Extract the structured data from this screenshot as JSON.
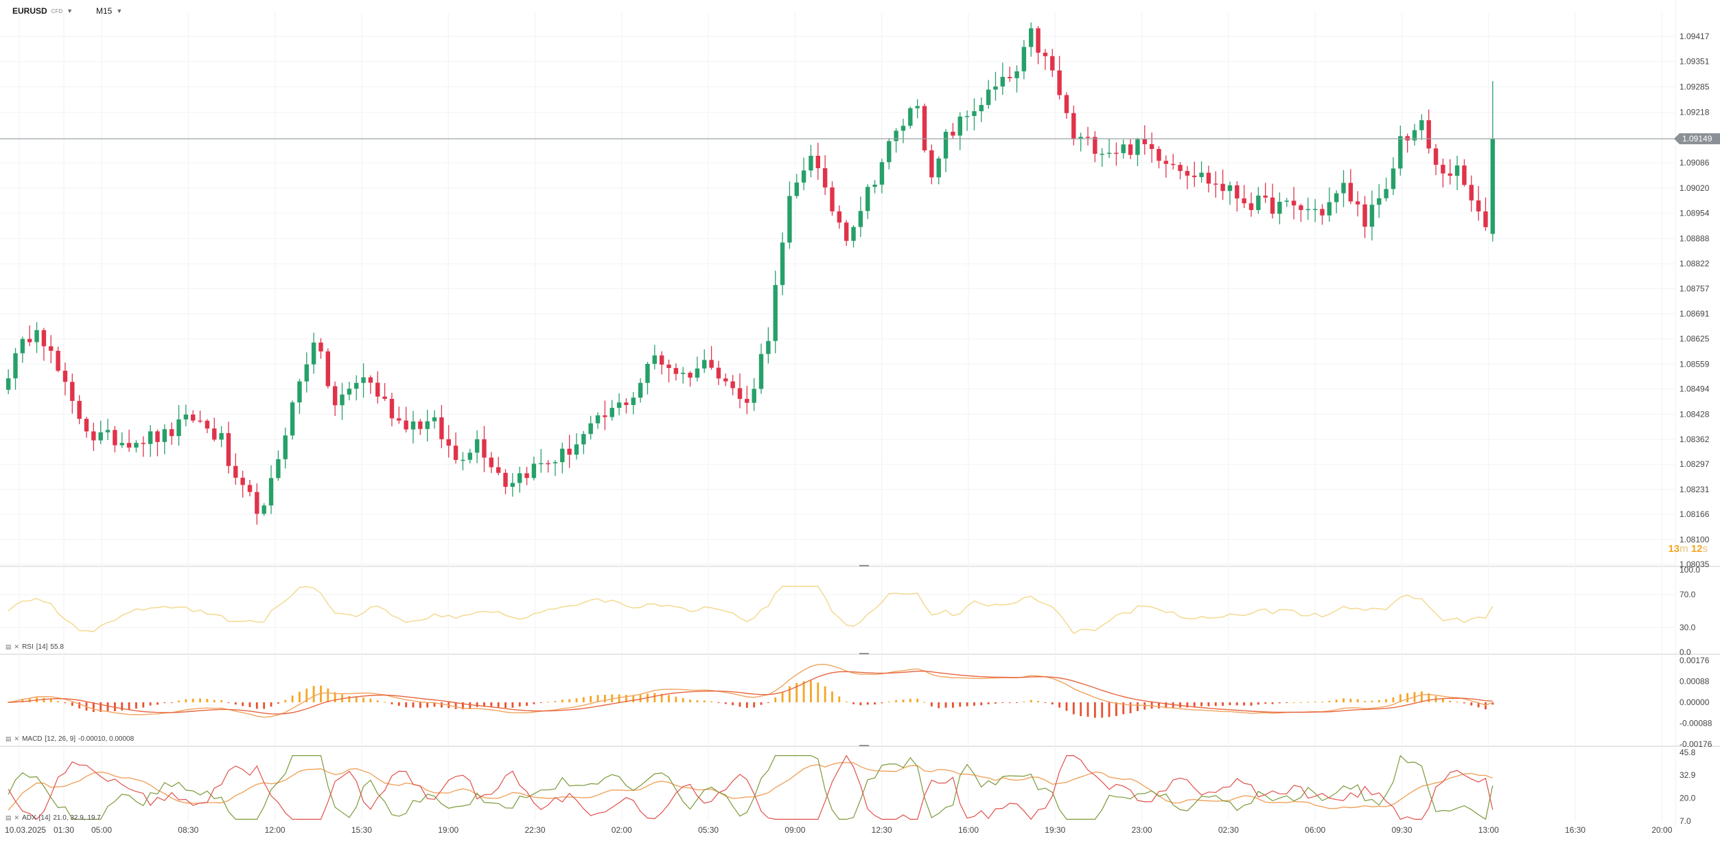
{
  "header": {
    "symbol": "EURUSD",
    "symbol_sub": "CFD",
    "timeframe": "M15"
  },
  "countdown": {
    "minutes": "13",
    "m": "m",
    "seconds": "12",
    "s": "s"
  },
  "colors": {
    "up": "#26a069",
    "down": "#e0334a",
    "rsi_line": "#f3d78a",
    "macd_line": "#f0a35e",
    "signal_line": "#e7653f",
    "hist_up": "#f5a623",
    "hist_down": "#e8502f",
    "adx_line": "#f0a35e",
    "plus_di": "#7a9a3a",
    "minus_di": "#e0504a",
    "price_line": "#9aa0a6",
    "price_label_bg": "#8a9096"
  },
  "chart_data": [
    {
      "type": "candlestick",
      "symbol": "EURUSD",
      "timeframe": "M15",
      "last_price": 1.09149,
      "ylim": [
        1.08035,
        1.09417
      ],
      "y_ticks": [
        "1.09417",
        "1.09351",
        "1.09285",
        "1.09218",
        "1.09086",
        "1.09020",
        "1.08954",
        "1.08888",
        "1.08822",
        "1.08757",
        "1.08691",
        "1.08625",
        "1.08559",
        "1.08494",
        "1.08428",
        "1.08362",
        "1.08297",
        "1.08231",
        "1.08166",
        "1.08100",
        "1.08035"
      ],
      "last_price_label": "1.09149",
      "x_ticks": [
        "10.03.2025",
        "01:30",
        "05:00",
        "08:30",
        "12:00",
        "15:30",
        "19:00",
        "22:30",
        "02:00",
        "05:30",
        "09:00",
        "12:30",
        "16:00",
        "19:30",
        "23:00",
        "02:30",
        "06:00",
        "09:30",
        "13:00",
        "16:30",
        "20:00"
      ],
      "anchors": [
        [
          0,
          1.0854
        ],
        [
          4,
          1.0867
        ],
        [
          9,
          1.0845
        ],
        [
          12,
          1.0837
        ],
        [
          16,
          1.0836
        ],
        [
          22,
          1.0837
        ],
        [
          26,
          1.0842
        ],
        [
          30,
          1.0836
        ],
        [
          32,
          1.0824
        ],
        [
          36,
          1.0817
        ],
        [
          39,
          1.0839
        ],
        [
          43,
          1.0863
        ],
        [
          46,
          1.0845
        ],
        [
          50,
          1.0853
        ],
        [
          55,
          1.0841
        ],
        [
          60,
          1.084
        ],
        [
          63,
          1.0831
        ],
        [
          66,
          1.0836
        ],
        [
          70,
          1.0825
        ],
        [
          73,
          1.0828
        ],
        [
          78,
          1.0832
        ],
        [
          84,
          1.0842
        ],
        [
          88,
          1.0848
        ],
        [
          91,
          1.0858
        ],
        [
          95,
          1.0853
        ],
        [
          99,
          1.0857
        ],
        [
          102,
          1.0849
        ],
        [
          104,
          1.0845
        ],
        [
          107,
          1.0864
        ],
        [
          110,
          1.0898
        ],
        [
          113,
          1.0912
        ],
        [
          115,
          1.09
        ],
        [
          118,
          1.089
        ],
        [
          120,
          1.0897
        ],
        [
          124,
          1.0913
        ],
        [
          128,
          1.0925
        ],
        [
          130,
          1.0903
        ],
        [
          132,
          1.0915
        ],
        [
          136,
          1.0923
        ],
        [
          139,
          1.0928
        ],
        [
          142,
          1.0932
        ],
        [
          144,
          1.0942
        ],
        [
          147,
          1.0932
        ],
        [
          150,
          1.0915
        ],
        [
          155,
          1.0912
        ],
        [
          160,
          1.0913
        ],
        [
          165,
          1.0908
        ],
        [
          170,
          1.0903
        ],
        [
          175,
          1.0898
        ],
        [
          180,
          1.0897
        ],
        [
          185,
          1.0896
        ],
        [
          188,
          1.0902
        ],
        [
          191,
          1.0894
        ],
        [
          194,
          1.09
        ],
        [
          196,
          1.0915
        ],
        [
          199,
          1.0918
        ],
        [
          201,
          1.0907
        ],
        [
          204,
          1.0906
        ],
        [
          207,
          1.0895
        ],
        [
          208,
          1.089
        ],
        [
          209,
          1.0915
        ]
      ],
      "bar_count": 210
    },
    {
      "type": "line",
      "name": "RSI",
      "params": "[14]",
      "last_value": "55.8",
      "ylim": [
        0,
        100
      ],
      "y_ticks": [
        "100.0",
        "70.0",
        "30.0",
        "0.0"
      ]
    },
    {
      "type": "bar+line",
      "name": "MACD",
      "params": "[12, 26, 9]",
      "values_text": "-0.00010,  0.00008",
      "ylim": [
        -0.00176,
        0.00176
      ],
      "y_ticks": [
        "0.00176",
        "0.00088",
        "0.00000",
        "-0.00088",
        "-0.00176"
      ]
    },
    {
      "type": "line",
      "name": "ADX",
      "params": "[14]",
      "values_text": "21.0,  32.9,  19.7",
      "ylim": [
        7.0,
        45.8
      ],
      "y_ticks": [
        "45.8",
        "32.9",
        "20.0",
        "7.0"
      ]
    }
  ]
}
